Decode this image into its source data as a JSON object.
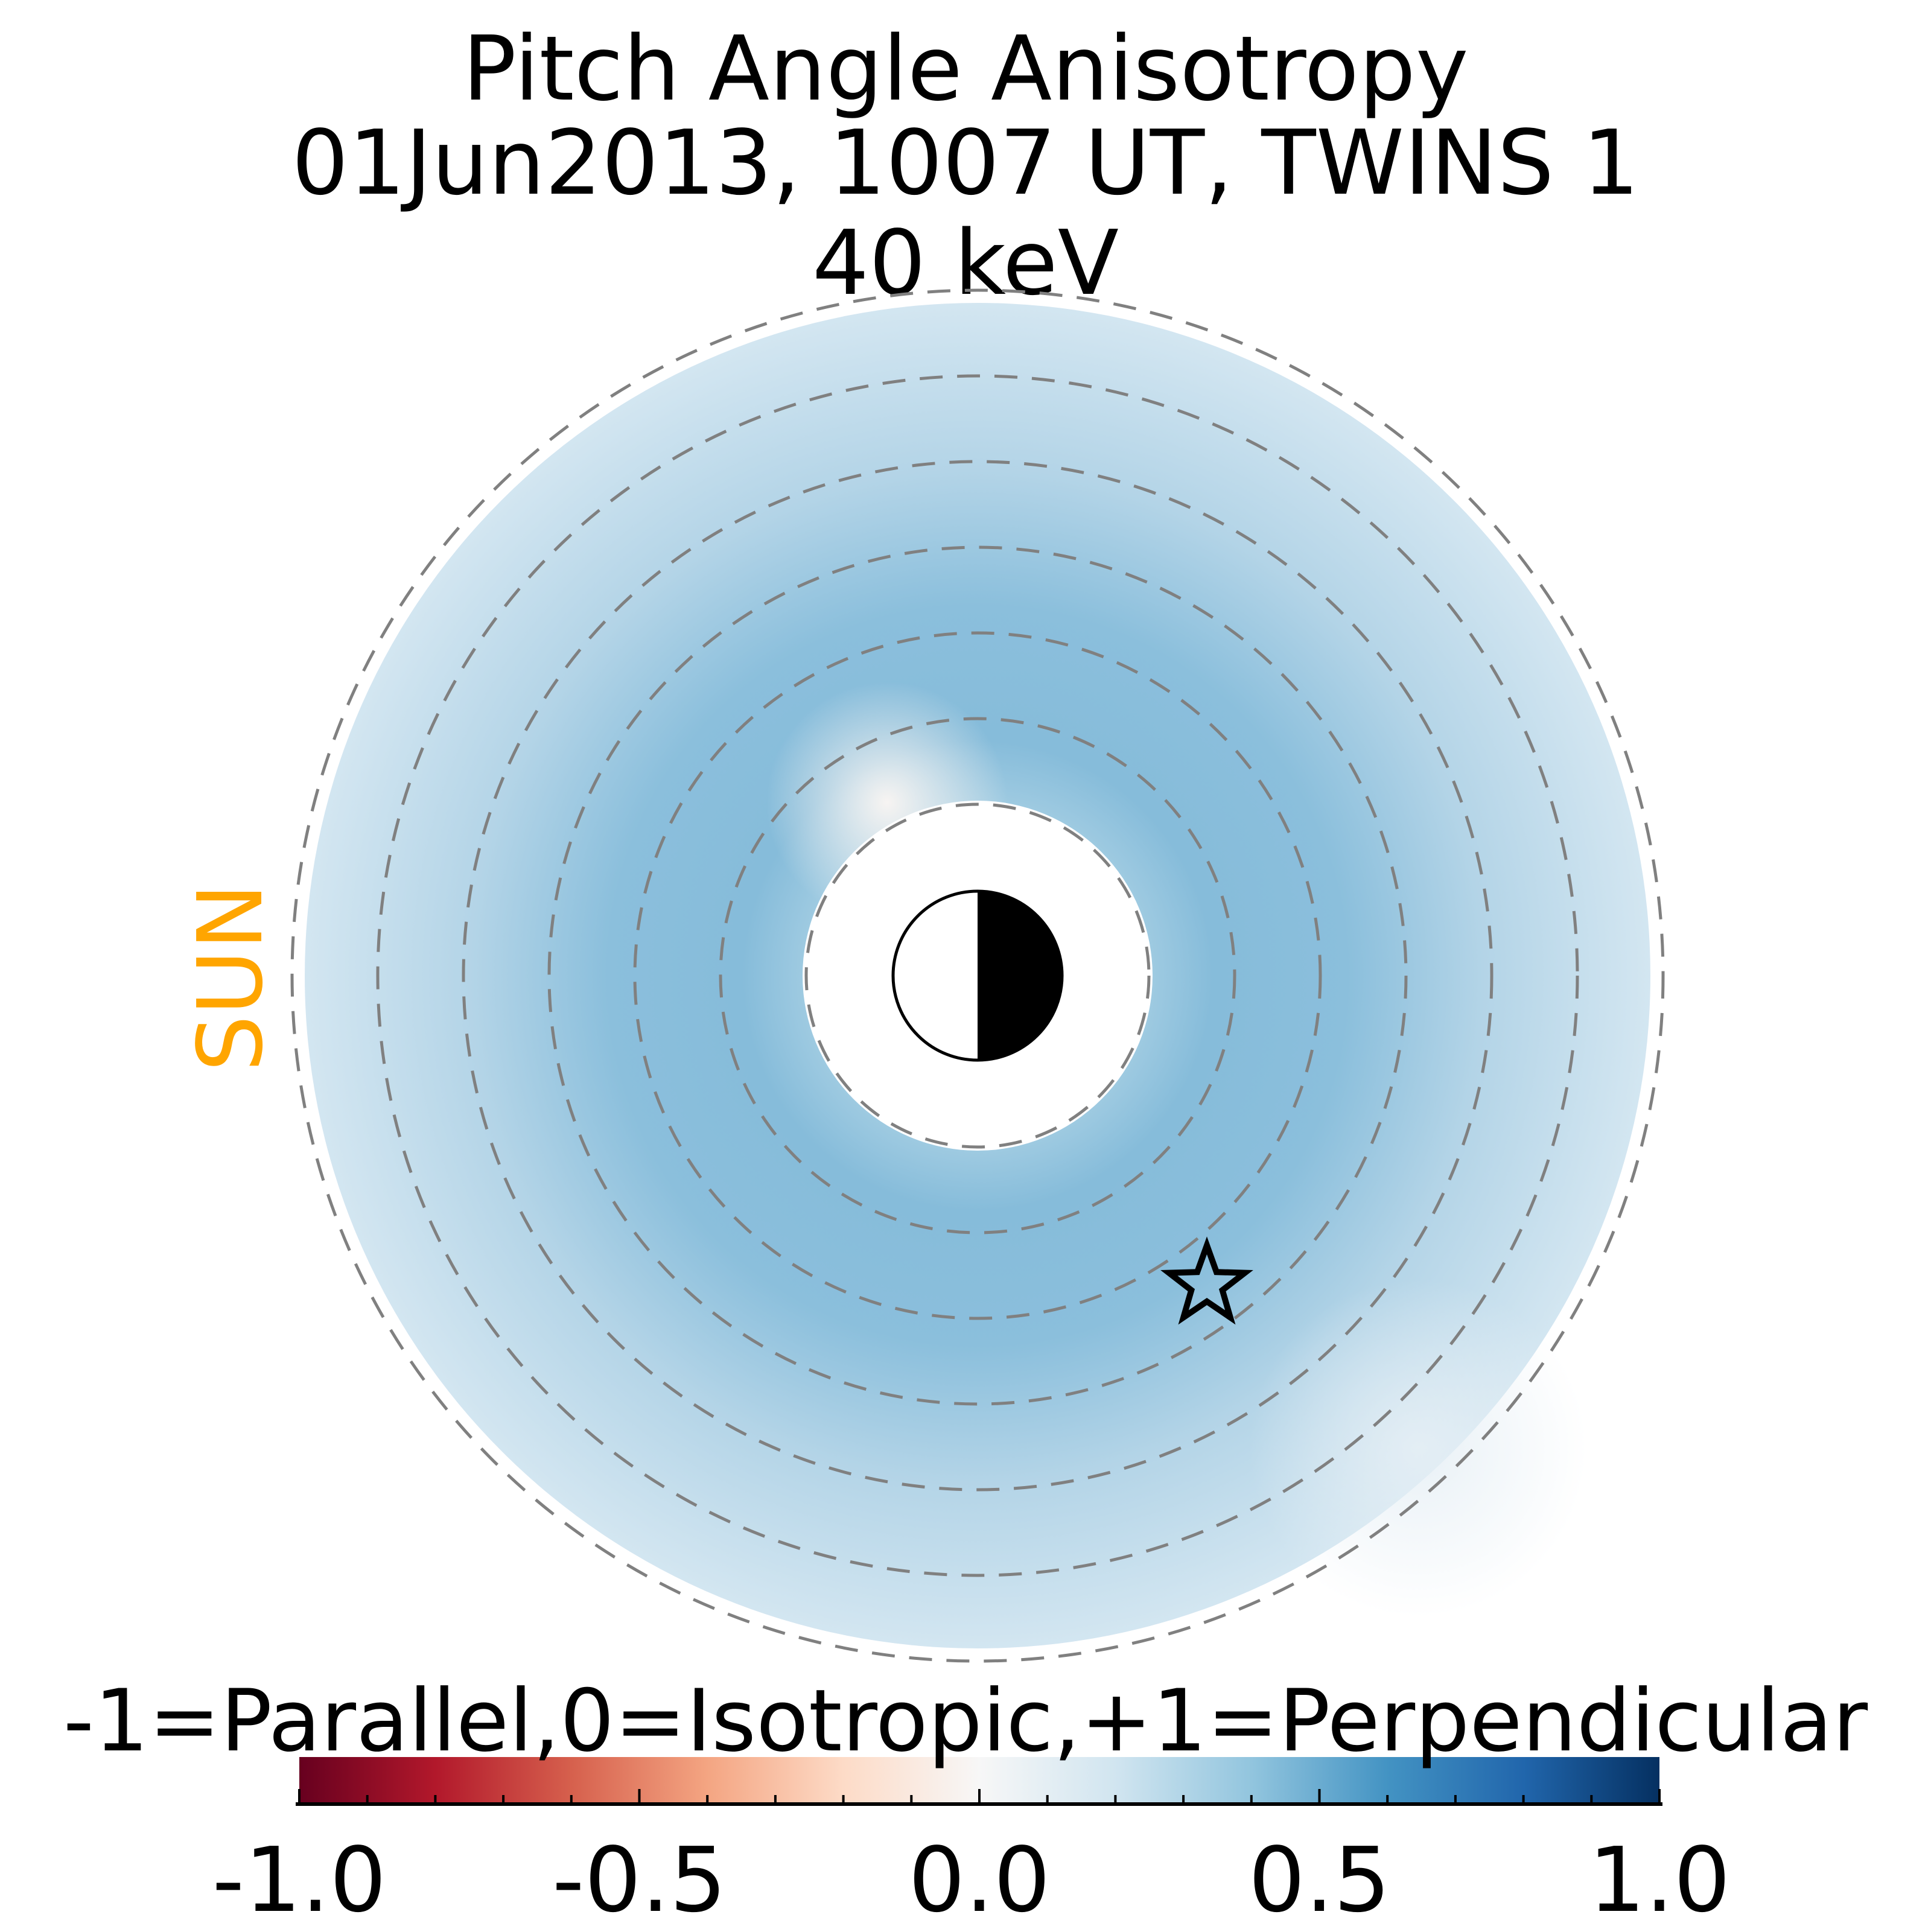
{
  "chart_data": {
    "type": "heatmap",
    "title": [
      "Pitch Angle Anisotropy",
      "01Jun2013, 1007 UT,  TWINS 1",
      "40 keV"
    ],
    "direction_label": "SUN",
    "colorbar": {
      "label": "-1=Parallel,0=Isotropic,+1=Perpendicular",
      "range": [
        -1.0,
        1.0
      ],
      "ticks": [
        -1.0,
        -0.5,
        0.0,
        0.5,
        1.0
      ],
      "tick_labels": [
        "-1.0",
        "-0.5",
        "0.0",
        "0.5",
        "1.0"
      ],
      "minor_step": 0.1,
      "colormap": [
        "#67001f",
        "#b2182b",
        "#d6604d",
        "#f4a582",
        "#fddbc7",
        "#f7f7f7",
        "#d1e5f0",
        "#92c5de",
        "#4393c3",
        "#2166ac",
        "#053061"
      ]
    },
    "rings_re": [
      2,
      3,
      4,
      5,
      6,
      7,
      8
    ],
    "value_summary": "mostly 0.2-0.45 (light to medium blue), near 0 just sunward-north of inner boundary",
    "markers": [
      "earth-day-night-symbol",
      "star-spacecraft-position"
    ]
  }
}
